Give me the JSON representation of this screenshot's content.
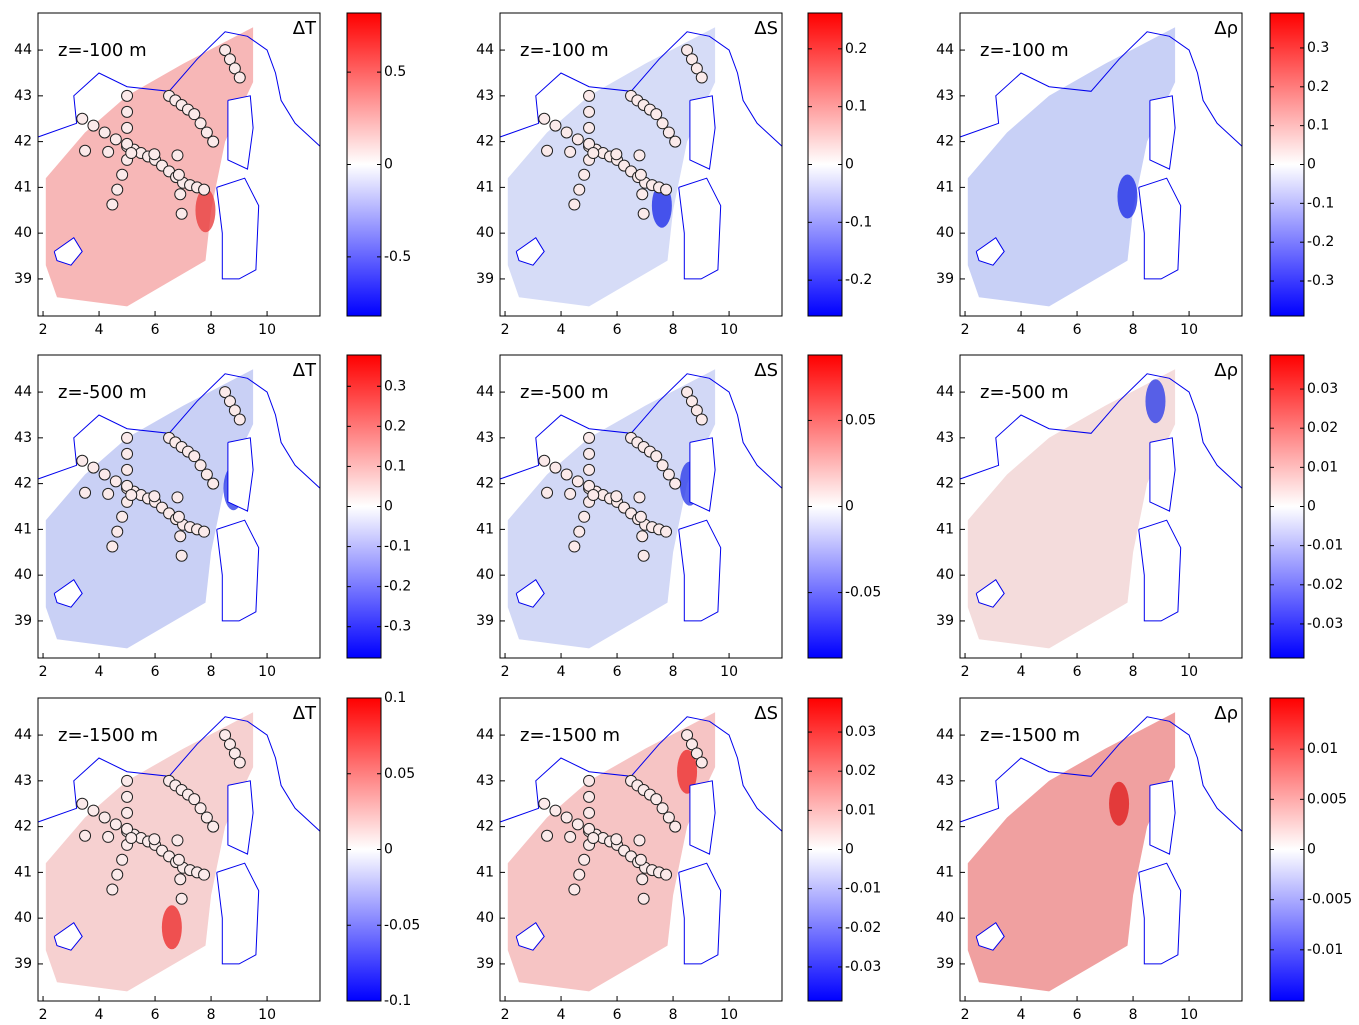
{
  "chart_data": [
    {
      "type": "map",
      "label": "z=-100 m",
      "title": "ΔT",
      "xlim": [
        1.82,
        11.89
      ],
      "ylim": [
        38.19,
        44.81
      ],
      "xticks": [
        2,
        4,
        6,
        8,
        10
      ],
      "yticks": [
        39,
        40,
        41,
        42,
        43,
        44
      ],
      "clim": [
        -0.82,
        0.82
      ],
      "cticks": [
        -0.5,
        0,
        0.5
      ],
      "colormap": [
        "#0000ff",
        "#ffffff",
        "#ff0000"
      ]
    },
    {
      "type": "map",
      "label": "z=-100 m",
      "title": "ΔS",
      "xlim": [
        1.82,
        11.89
      ],
      "ylim": [
        38.19,
        44.81
      ],
      "xticks": [
        2,
        4,
        6,
        8,
        10
      ],
      "yticks": [
        39,
        40,
        41,
        42,
        43,
        44
      ],
      "clim": [
        -0.262,
        0.262
      ],
      "cticks": [
        -0.2,
        -0.1,
        0,
        0.1,
        0.2
      ],
      "colormap": [
        "#0000ff",
        "#ffffff",
        "#ff0000"
      ]
    },
    {
      "type": "map",
      "label": "z=-100 m",
      "title": "Δρ",
      "xlim": [
        1.82,
        11.89
      ],
      "ylim": [
        38.19,
        44.81
      ],
      "xticks": [
        2,
        4,
        6,
        8,
        10
      ],
      "yticks": [
        39,
        40,
        41,
        42,
        43,
        44
      ],
      "clim": [
        -0.39,
        0.39
      ],
      "cticks": [
        -0.3,
        -0.2,
        -0.1,
        0,
        0.1,
        0.2,
        0.3
      ],
      "colormap": [
        "#0000ff",
        "#ffffff",
        "#ff0000"
      ]
    },
    {
      "type": "map",
      "label": "z=-500 m",
      "title": "ΔT",
      "xlim": [
        1.82,
        11.89
      ],
      "ylim": [
        38.19,
        44.81
      ],
      "xticks": [
        2,
        4,
        6,
        8,
        10
      ],
      "yticks": [
        39,
        40,
        41,
        42,
        43,
        44
      ],
      "clim": [
        -0.378,
        0.378
      ],
      "cticks": [
        -0.3,
        -0.2,
        -0.1,
        0,
        0.1,
        0.2,
        0.3
      ],
      "colormap": [
        "#0000ff",
        "#ffffff",
        "#ff0000"
      ]
    },
    {
      "type": "map",
      "label": "z=-500 m",
      "title": "ΔS",
      "xlim": [
        1.82,
        11.89
      ],
      "ylim": [
        38.19,
        44.81
      ],
      "xticks": [
        2,
        4,
        6,
        8,
        10
      ],
      "yticks": [
        39,
        40,
        41,
        42,
        43,
        44
      ],
      "clim": [
        -0.088,
        0.088
      ],
      "cticks": [
        -0.05,
        0,
        0.05
      ],
      "colormap": [
        "#0000ff",
        "#ffffff",
        "#ff0000"
      ]
    },
    {
      "type": "map",
      "label": "z=-500 m",
      "title": "Δρ",
      "xlim": [
        1.82,
        11.89
      ],
      "ylim": [
        38.19,
        44.81
      ],
      "xticks": [
        2,
        4,
        6,
        8,
        10
      ],
      "yticks": [
        39,
        40,
        41,
        42,
        43,
        44
      ],
      "clim": [
        -0.0387,
        0.0387
      ],
      "cticks": [
        -0.03,
        -0.02,
        -0.01,
        0,
        0.01,
        0.02,
        0.03
      ],
      "colormap": [
        "#0000ff",
        "#ffffff",
        "#ff0000"
      ]
    },
    {
      "type": "map",
      "label": "z=-1500 m",
      "title": "ΔT",
      "xlim": [
        1.82,
        11.89
      ],
      "ylim": [
        38.19,
        44.81
      ],
      "xticks": [
        2,
        4,
        6,
        8,
        10
      ],
      "yticks": [
        39,
        40,
        41,
        42,
        43,
        44
      ],
      "clim": [
        -0.1,
        0.1
      ],
      "cticks": [
        -0.1,
        -0.05,
        0,
        0.05,
        0.1
      ],
      "colormap": [
        "#0000ff",
        "#ffffff",
        "#ff0000"
      ]
    },
    {
      "type": "map",
      "label": "z=-1500 m",
      "title": "ΔS",
      "xlim": [
        1.82,
        11.89
      ],
      "ylim": [
        38.19,
        44.81
      ],
      "xticks": [
        2,
        4,
        6,
        8,
        10
      ],
      "yticks": [
        39,
        40,
        41,
        42,
        43,
        44
      ],
      "clim": [
        -0.0387,
        0.0387
      ],
      "cticks": [
        -0.03,
        -0.02,
        -0.01,
        0,
        0.01,
        0.02,
        0.03
      ],
      "colormap": [
        "#0000ff",
        "#ffffff",
        "#ff0000"
      ]
    },
    {
      "type": "map",
      "label": "z=-1500 m",
      "title": "Δρ",
      "xlim": [
        1.82,
        11.89
      ],
      "ylim": [
        38.19,
        44.81
      ],
      "xticks": [
        2,
        4,
        6,
        8,
        10
      ],
      "yticks": [
        39,
        40,
        41,
        42,
        43,
        44
      ],
      "clim": [
        -0.0151,
        0.0151
      ],
      "cticks": [
        -0.01,
        -0.005,
        0,
        0.005,
        0.01
      ],
      "colormap": [
        "#0000ff",
        "#ffffff",
        "#ff0000"
      ]
    }
  ]
}
